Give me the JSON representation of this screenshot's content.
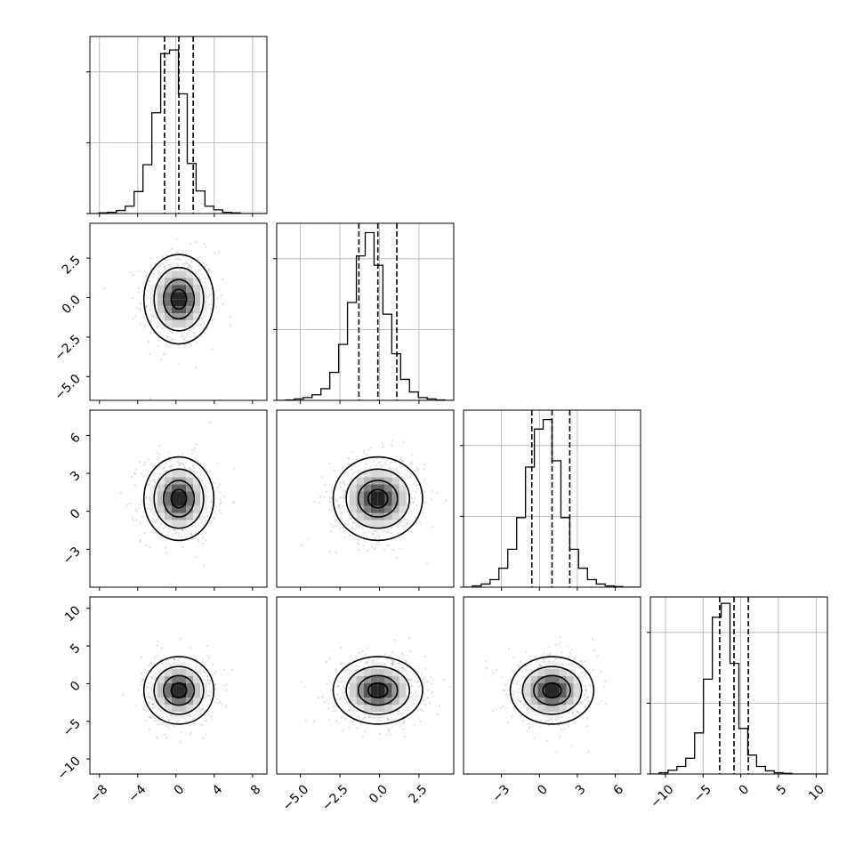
{
  "chart_data": {
    "type": "corner",
    "variables": [
      {
        "range": [
          -9,
          9.5
        ],
        "ticks": [
          -8,
          -4,
          0,
          4,
          8
        ],
        "tick_labels": [
          "−8",
          "−4",
          "0",
          "4",
          "8"
        ],
        "mean": 0.3,
        "sd": 1.55,
        "quantiles": [
          -1.2,
          0.3,
          1.8
        ]
      },
      {
        "range": [
          -6.5,
          4.7
        ],
        "ticks": [
          -5.0,
          -2.5,
          0.0,
          2.5
        ],
        "tick_labels": [
          "−5.0",
          "−2.5",
          "0.0",
          "2.5"
        ],
        "mean": -0.1,
        "sd": 1.2,
        "quantiles": [
          -1.3,
          -0.1,
          1.1
        ]
      },
      {
        "range": [
          -6,
          8
        ],
        "ticks": [
          -3,
          0,
          3,
          6
        ],
        "tick_labels": [
          "−3",
          "0",
          "3",
          "6"
        ],
        "mean": 1.0,
        "sd": 1.4,
        "quantiles": [
          -0.6,
          1.0,
          2.4
        ]
      },
      {
        "range": [
          -12,
          11.5
        ],
        "ticks": [
          -10,
          -5,
          0,
          5,
          10
        ],
        "tick_labels": [
          "−10",
          "−5",
          "0",
          "5",
          "10"
        ],
        "mean": -0.9,
        "sd": 1.9,
        "quantiles": [
          -2.8,
          -0.9,
          1.0
        ]
      }
    ],
    "histograms": [
      {
        "var": 0,
        "bin_start": -9,
        "bin_width": 0.925,
        "counts": [
          0,
          1,
          2,
          5,
          12,
          36,
          80,
          165,
          262,
          268,
          196,
          82,
          37,
          12,
          6,
          2,
          1,
          0,
          0,
          0
        ],
        "ymax": 290
      },
      {
        "var": 1,
        "bin_start": -6.5,
        "bin_width": 0.56,
        "counts": [
          0,
          1,
          3,
          6,
          12,
          25,
          60,
          120,
          210,
          310,
          360,
          290,
          185,
          100,
          45,
          18,
          6,
          3,
          1,
          0
        ],
        "ymax": 380
      },
      {
        "var": 2,
        "bin_start": -6,
        "bin_width": 0.7,
        "counts": [
          0,
          2,
          5,
          12,
          30,
          60,
          110,
          190,
          250,
          265,
          200,
          110,
          60,
          30,
          12,
          5,
          2,
          1,
          0,
          0
        ],
        "ymax": 280
      },
      {
        "var": 3,
        "bin_start": -12,
        "bin_width": 1.175,
        "counts": [
          0,
          2,
          6,
          12,
          25,
          65,
          150,
          248,
          270,
          175,
          72,
          30,
          12,
          5,
          2,
          1,
          0,
          0,
          0,
          0
        ],
        "ymax": 280
      }
    ],
    "grid": true
  }
}
